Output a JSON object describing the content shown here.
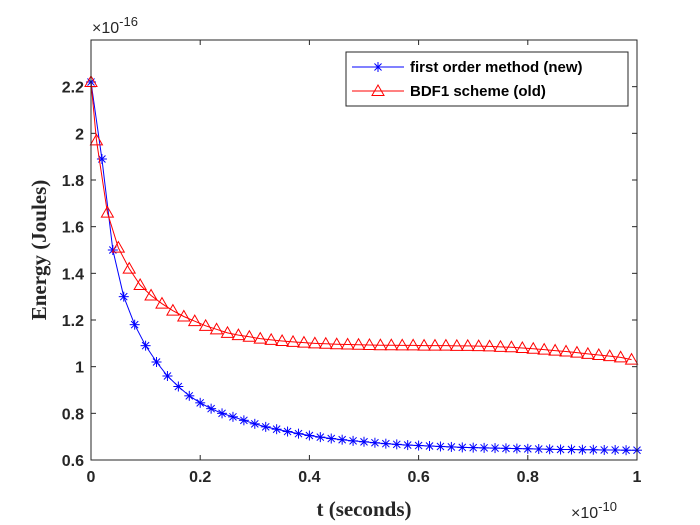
{
  "chart_data": {
    "type": "line",
    "xlabel": "t (seconds)",
    "ylabel": "Energy (Joules)",
    "x_multiplier": "×10",
    "x_multiplier_exp": "-10",
    "y_multiplier": "×10",
    "y_multiplier_exp": "-16",
    "xlim": [
      0,
      1
    ],
    "ylim": [
      0.6,
      2.4
    ],
    "x_ticks": [
      0,
      0.2,
      0.4,
      0.6,
      0.8,
      1
    ],
    "x_tick_labels": [
      "0",
      "0.2",
      "0.4",
      "0.6",
      "0.8",
      "1"
    ],
    "y_ticks": [
      0.6,
      0.8,
      1,
      1.2,
      1.4,
      1.6,
      1.8,
      2,
      2.2
    ],
    "y_tick_labels": [
      "0.6",
      "0.8",
      "1",
      "1.2",
      "1.4",
      "1.6",
      "1.8",
      "2",
      "2.2"
    ],
    "legend_position": "top-right",
    "series": [
      {
        "name": "first order method (new)",
        "color": "#0000ff",
        "marker": "asterisk",
        "x": [
          0,
          0.02,
          0.04,
          0.06,
          0.08,
          0.1,
          0.12,
          0.14,
          0.16,
          0.18,
          0.2,
          0.22,
          0.24,
          0.26,
          0.28,
          0.3,
          0.32,
          0.34,
          0.36,
          0.38,
          0.4,
          0.42,
          0.44,
          0.46,
          0.48,
          0.5,
          0.52,
          0.54,
          0.56,
          0.58,
          0.6,
          0.62,
          0.64,
          0.66,
          0.68,
          0.7,
          0.72,
          0.74,
          0.76,
          0.78,
          0.8,
          0.82,
          0.84,
          0.86,
          0.88,
          0.9,
          0.92,
          0.94,
          0.96,
          0.98,
          1.0
        ],
        "values": [
          2.22,
          1.89,
          1.5,
          1.3,
          1.18,
          1.09,
          1.02,
          0.96,
          0.915,
          0.875,
          0.845,
          0.82,
          0.8,
          0.785,
          0.77,
          0.755,
          0.742,
          0.732,
          0.722,
          0.713,
          0.705,
          0.698,
          0.692,
          0.687,
          0.682,
          0.678,
          0.674,
          0.67,
          0.667,
          0.664,
          0.662,
          0.66,
          0.658,
          0.656,
          0.654,
          0.653,
          0.652,
          0.651,
          0.65,
          0.649,
          0.648,
          0.647,
          0.646,
          0.645,
          0.645,
          0.644,
          0.644,
          0.643,
          0.643,
          0.642,
          0.642
        ]
      },
      {
        "name": "BDF1 scheme (old)",
        "color": "#ff0000",
        "marker": "triangle",
        "x": [
          0,
          0.01,
          0.03,
          0.05,
          0.07,
          0.09,
          0.11,
          0.13,
          0.15,
          0.17,
          0.19,
          0.21,
          0.23,
          0.25,
          0.27,
          0.29,
          0.31,
          0.33,
          0.35,
          0.37,
          0.39,
          0.41,
          0.43,
          0.45,
          0.47,
          0.49,
          0.51,
          0.53,
          0.55,
          0.57,
          0.59,
          0.61,
          0.63,
          0.65,
          0.67,
          0.69,
          0.71,
          0.73,
          0.75,
          0.77,
          0.79,
          0.81,
          0.83,
          0.85,
          0.87,
          0.89,
          0.91,
          0.93,
          0.95,
          0.97,
          0.99
        ],
        "values": [
          2.22,
          1.97,
          1.66,
          1.51,
          1.42,
          1.35,
          1.305,
          1.27,
          1.24,
          1.215,
          1.195,
          1.175,
          1.16,
          1.145,
          1.135,
          1.128,
          1.12,
          1.115,
          1.11,
          1.106,
          1.103,
          1.1,
          1.098,
          1.096,
          1.095,
          1.094,
          1.093,
          1.092,
          1.092,
          1.091,
          1.091,
          1.09,
          1.09,
          1.09,
          1.089,
          1.089,
          1.088,
          1.087,
          1.085,
          1.083,
          1.08,
          1.077,
          1.073,
          1.069,
          1.065,
          1.06,
          1.055,
          1.05,
          1.045,
          1.04,
          1.03
        ]
      }
    ]
  }
}
